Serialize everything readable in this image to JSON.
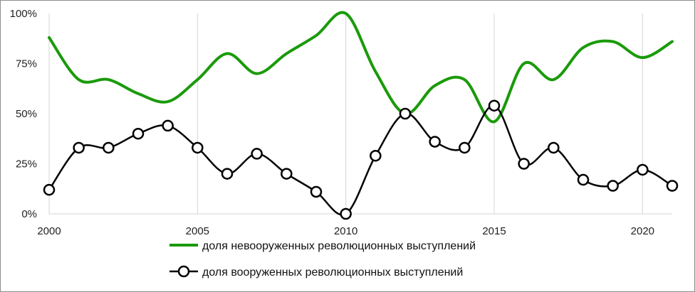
{
  "chart_data": {
    "type": "line",
    "title": "",
    "xlabel": "",
    "ylabel": "",
    "x": [
      2000,
      2001,
      2002,
      2003,
      2004,
      2005,
      2006,
      2007,
      2008,
      2009,
      2010,
      2011,
      2012,
      2013,
      2014,
      2015,
      2016,
      2017,
      2018,
      2019,
      2020,
      2021
    ],
    "xlim": [
      2000,
      2021
    ],
    "ylim": [
      0,
      100
    ],
    "x_ticks": [
      "2000",
      "2005",
      "2010",
      "2015",
      "2020"
    ],
    "y_ticks": [
      "0%",
      "25%",
      "50%",
      "75%",
      "100%"
    ],
    "grid": "vertical",
    "legend_position": "bottom",
    "series": [
      {
        "name": "доля невооруженных революционных выступлений",
        "color": "#1a9a0a",
        "marker": "none",
        "values": [
          88,
          67,
          67,
          60,
          56,
          67,
          80,
          70,
          80,
          89,
          100,
          71,
          50,
          64,
          67,
          46,
          75,
          67,
          83,
          86,
          78,
          86
        ]
      },
      {
        "name": "доля вооруженных революционных выступлений",
        "color": "#000000",
        "marker": "circle",
        "values": [
          12,
          33,
          33,
          40,
          44,
          33,
          20,
          30,
          20,
          11,
          0,
          29,
          50,
          36,
          33,
          54,
          25,
          33,
          17,
          14,
          22,
          14
        ]
      }
    ]
  }
}
